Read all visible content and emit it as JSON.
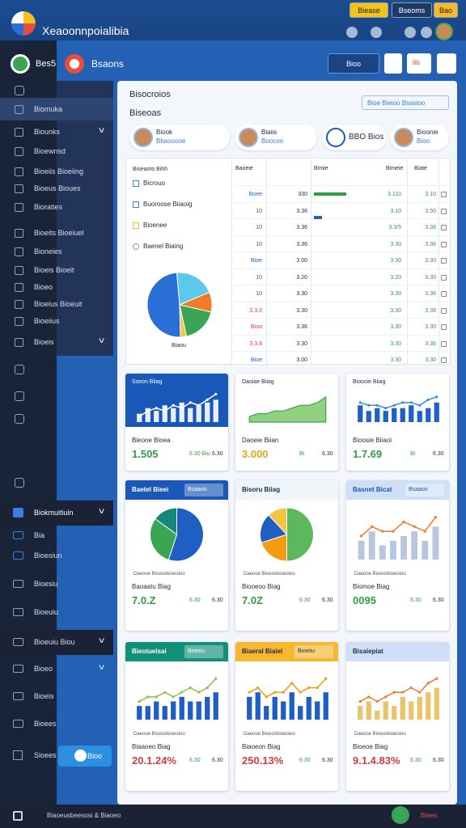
{
  "header": {
    "title": "Xeaoonnpoialibia",
    "buttons": [
      "Biease",
      "Bseoms",
      "Bao"
    ]
  },
  "sidebar": {
    "brand": "Bes5",
    "items": [
      "Biomuka",
      "Biounks",
      "Bioewnsd",
      "Bioeiis Bioeiing",
      "Bioeus Bioues",
      "Bioraties",
      "Bioeits Bioeiuel",
      "Bioneies",
      "Bioeis Bioeit",
      "Bioeo",
      "Bioeius Bioeuit",
      "Bioeiius",
      "Bioeis"
    ],
    "section": "Biokmuitiuin",
    "sub_items": [
      "Bia",
      "Bioesiun",
      "Bioesiu",
      "Bioeuiu",
      "Bioeuiu Biou",
      "Bioeo",
      "Bioeis",
      "Bioees"
    ],
    "footer": "Sioees",
    "cta": "Bioo"
  },
  "toolbar": {
    "title": "Bsaons",
    "button": "Bioo",
    "badge": "8b"
  },
  "panel": {
    "title": "Bisocroios",
    "subtitle": "Biseoas",
    "filter": "Bioe Bieioo Bsasioo"
  },
  "profiles": [
    {
      "name": "Biook",
      "role": "Bbaooooe"
    },
    {
      "name": "Biaiis",
      "role": "Boocoo"
    },
    {
      "name": "BBO Bios"
    },
    {
      "name": "Bioonie",
      "role": "Bioo"
    }
  ],
  "overview": {
    "legend_title": "Biseaoto Bihh",
    "legend": [
      "Bicrouo",
      "Buoroose Biiaoig",
      "Bioenee",
      "Baenel Biaing"
    ],
    "pie": {
      "type": "pie",
      "label": "Biaou",
      "values": [
        20,
        10,
        18,
        3,
        49
      ],
      "colors": [
        "#5bc8ec",
        "#f07c2a",
        "#3aa655",
        "#f4c542",
        "#2a6fd6"
      ]
    },
    "columns": [
      "Baoeie",
      "Bimie",
      "Bimeie",
      "Biate"
    ],
    "rows": [
      [
        "Boee",
        "330",
        "3.110",
        "3.10"
      ],
      [
        "10",
        "3.36",
        "3.10",
        "3.50"
      ],
      [
        "10",
        "3.36",
        "3.3/5",
        "3.36"
      ],
      [
        "10",
        "3.36",
        "3.30",
        "3.36"
      ],
      [
        "Bioe",
        "3.00",
        "3.30",
        "3.30"
      ],
      [
        "10",
        "3.20",
        "3.20",
        "3.30"
      ],
      [
        "10",
        "3.30",
        "3.30",
        "3.36"
      ],
      [
        "3.3.0",
        "3.30",
        "3.30",
        "3.36"
      ],
      [
        "Bioo",
        "3.36",
        "3.30",
        "3.30"
      ],
      [
        "3.3.8",
        "3.30",
        "3.30",
        "3.36"
      ],
      [
        "Bioe",
        "3.00",
        "3.30",
        "3.30"
      ]
    ]
  },
  "cards": [
    {
      "title": "Sseon Biiag",
      "chart": {
        "type": "bar",
        "bg": "#1958b8",
        "color": "#e8f0ff",
        "line_color": "#ffffff",
        "ylim": [
          0,
          11
        ],
        "values": [
          3,
          5,
          4,
          6,
          5,
          7,
          5,
          6,
          7,
          8
        ],
        "line": [
          2,
          4,
          5,
          4,
          6,
          5,
          7,
          6,
          8,
          10
        ]
      },
      "label": "Bieooe Bioea",
      "value": "1.505",
      "value_color": "#2e9e45",
      "notes": [
        "6.30 Biu",
        "6.30"
      ]
    },
    {
      "title": "Daoiae Biiag",
      "chart": {
        "type": "area",
        "bg": "#ffffff",
        "color": "#8fd17f",
        "line_color": "#3aa655",
        "ylim": [
          0,
          11
        ],
        "values": [
          2,
          3,
          3,
          4,
          4,
          5,
          6,
          6,
          7,
          9
        ]
      },
      "label": "Daoeie Biian",
      "value": "3.000",
      "value_color": "#e8a317",
      "notes": [
        "Bi",
        "6.30"
      ]
    },
    {
      "title": "Bioosie Biiag",
      "chart": {
        "type": "bar",
        "bg": "#ffffff",
        "color": "#1f62c4",
        "line_color": "#3b8fd9",
        "ylim": [
          0,
          11
        ],
        "values": [
          6,
          4,
          5,
          4,
          5,
          5,
          6,
          4,
          5,
          7
        ],
        "line": [
          7,
          6,
          6,
          5,
          6,
          7,
          7,
          6,
          8,
          9
        ]
      },
      "label": "Bioosie Biiaoi",
      "value": "1.7.69",
      "value_color": "#2e9e45",
      "notes": [
        "Bi",
        "6.30"
      ]
    },
    {
      "title": "Baetel Bieei",
      "tag": "Bsaaoo",
      "header": "#1958b8",
      "header_text": "#ffffff",
      "chart": {
        "type": "pie",
        "bg": "#ffffff",
        "values": [
          55,
          30,
          15
        ],
        "colors": [
          "#1f5fc4",
          "#3aa655",
          "#17877a"
        ]
      },
      "caption": "Daeooe Bioeoxbioeoioo",
      "label": "Baoaatu Biag",
      "value": "7.0.Z",
      "value_color": "#2e9e45",
      "notes": [
        "6.30",
        "6.30"
      ]
    },
    {
      "title": "Bisoru Biiag",
      "header": "#eef6fb",
      "header_text": "#1d2b44",
      "chart": {
        "type": "pie",
        "bg": "#ffffff",
        "values": [
          50,
          20,
          18,
          12
        ],
        "colors": [
          "#5cb85c",
          "#f39c12",
          "#1f5fc4",
          "#f4c542"
        ]
      },
      "caption": "Daeooe Bioeoxbioeoioo",
      "label": "Biooeoo Biag",
      "value": "7.0Z",
      "value_color": "#2e9e45",
      "notes": [
        "6.30",
        "6.30"
      ]
    },
    {
      "title": "Basnet Bicat",
      "tag": "Bsaaoo",
      "header": "#cfe0f6",
      "header_text": "#1958b8",
      "chart": {
        "type": "bar",
        "bg": "#ffffff",
        "color": "#b8c6e0",
        "line_color": "#f07c2a",
        "ylim": [
          0,
          11
        ],
        "values": [
          4,
          6,
          3,
          4,
          5,
          6,
          4,
          7
        ],
        "line": [
          5,
          7,
          6,
          6,
          8,
          7,
          6,
          9
        ]
      },
      "caption": "Daeooe Bioeoxbioeoioo",
      "label": "Biomoe Biag",
      "value": "0095",
      "value_color": "#2e9e45",
      "notes": [
        "6.30",
        "6.30"
      ]
    },
    {
      "title": "Bieotuelsai",
      "tag": "Bioeiiu",
      "header": "#12907a",
      "header_text": "#ffffff",
      "chart": {
        "type": "bar",
        "bg": "#ffffff",
        "color": "#1f5fc4",
        "line_color": "#8bc34a",
        "ylim": [
          0,
          11
        ],
        "values": [
          3,
          3,
          4,
          3,
          4,
          5,
          4,
          4,
          5,
          6
        ],
        "line": [
          4,
          5,
          5,
          6,
          5,
          6,
          7,
          6,
          7,
          9
        ]
      },
      "caption": "Daeooe Bioeoxbioeoioo",
      "label": "Biaaoeo Biag",
      "value": "20.1.24%",
      "value_color": "#d93a3a",
      "notes": [
        "6.30",
        "6.30"
      ]
    },
    {
      "title": "Biaeral Biaiel",
      "tag": "Bioeiiu",
      "header": "#f7b731",
      "header_text": "#1d2b44",
      "chart": {
        "type": "bar",
        "bg": "#ffffff",
        "color": "#1f5fc4",
        "line_color": "#f39c12",
        "ylim": [
          0,
          11
        ],
        "values": [
          5,
          6,
          3,
          5,
          4,
          6,
          3,
          5,
          4,
          6
        ],
        "line": [
          6,
          7,
          5,
          6,
          6,
          8,
          6,
          7,
          7,
          9
        ]
      },
      "caption": "Daeooe Bioeoxbioeoioo",
      "label": "Biaoeon Biag",
      "value": "250.13%",
      "value_color": "#d93a3a",
      "notes": [
        "6.30",
        "6.30"
      ]
    },
    {
      "title": "Bisaiepiat",
      "header": "#cfe0f6",
      "header_text": "#1d2b44",
      "chart": {
        "type": "bar",
        "bg": "#ffffff",
        "color": "#e8c56a",
        "line_color": "#f07c2a",
        "ylim": [
          0,
          11
        ],
        "values": [
          3,
          4,
          2,
          4,
          3,
          5,
          4,
          5,
          6,
          7
        ],
        "line": [
          4,
          5,
          4,
          5,
          6,
          6,
          7,
          6,
          8,
          9
        ]
      },
      "caption": "Daeooe Bioeoxbioeoioo",
      "label": "Bioeoe Biag",
      "value": "9.1.4.83%",
      "value_color": "#d93a3a",
      "notes": [
        "6.30",
        "6.30"
      ]
    }
  ],
  "status": {
    "text": "Biaoeusbeesosi & Biaoeo",
    "badge": "Biaeo"
  }
}
